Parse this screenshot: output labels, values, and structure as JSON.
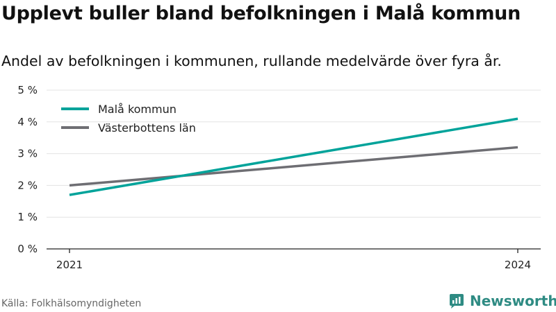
{
  "title": "Upplevt buller bland befolkningen i Malå kommun",
  "subtitle": "Andel av befolkningen i kommunen, rullande medelvärde över fyra år.",
  "source": "Källa: Folkhälsomyndigheten",
  "brand": {
    "name": "Newsworthy",
    "icon": "newsworthy-logo-icon",
    "color": "#2e8b83"
  },
  "chart_data": {
    "type": "line",
    "title": "Upplevt buller bland befolkningen i Malå kommun",
    "subtitle": "Andel av befolkningen i kommunen, rullande medelvärde över fyra år.",
    "xlabel": "",
    "ylabel": "",
    "x": [
      2021,
      2024
    ],
    "x_tick_labels": [
      "2021",
      "2024"
    ],
    "ylim": [
      0,
      5
    ],
    "y_ticks": [
      0,
      1,
      2,
      3,
      4,
      5
    ],
    "y_tick_labels": [
      "0 %",
      "1 %",
      "2 %",
      "3 %",
      "4 %",
      "5 %"
    ],
    "grid": true,
    "legend_position": "top-left",
    "series": [
      {
        "name": "Malå kommun",
        "color": "#00a39a",
        "values": [
          1.7,
          4.1
        ]
      },
      {
        "name": "Västerbottens län",
        "color": "#6e6e73",
        "values": [
          2.0,
          3.2
        ]
      }
    ]
  }
}
